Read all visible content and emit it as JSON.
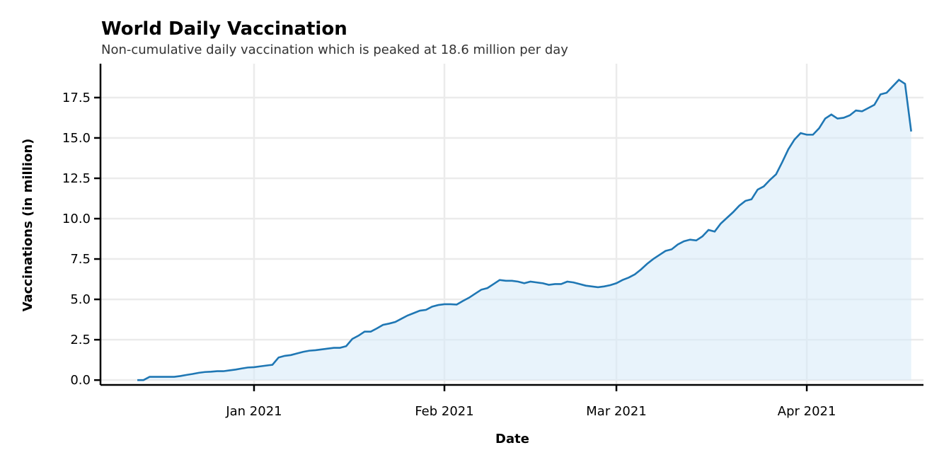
{
  "chart_data": {
    "type": "area",
    "title": "World Daily Vaccination",
    "subtitle": "Non-cumulative daily vaccination which is peaked at 18.6 million per day",
    "xlabel": "Date",
    "ylabel": "Vaccinations (in million)",
    "xlim": [
      "2020-12-07",
      "2021-04-20"
    ],
    "ylim": [
      -0.3,
      19.6
    ],
    "x_ticks": [
      {
        "date": "2021-01-01",
        "label": "Jan 2021"
      },
      {
        "date": "2021-02-01",
        "label": "Feb 2021"
      },
      {
        "date": "2021-03-01",
        "label": "Mar 2021"
      },
      {
        "date": "2021-04-01",
        "label": "Apr 2021"
      }
    ],
    "y_ticks": [
      0,
      2.5,
      5,
      7.5,
      10,
      12.5,
      15,
      17.5
    ],
    "y_tick_labels": [
      "0.0",
      "2.5",
      "5.0",
      "7.5",
      "10.0",
      "12.5",
      "15.0",
      "17.5"
    ],
    "grid": true,
    "line_color": "#1f77b4",
    "fill_color": "#d6eaf8",
    "start_date": "2020-12-13",
    "values": [
      0.0,
      0.0,
      0.2,
      0.2,
      0.2,
      0.2,
      0.2,
      0.25,
      0.32,
      0.38,
      0.45,
      0.5,
      0.52,
      0.55,
      0.55,
      0.6,
      0.65,
      0.72,
      0.78,
      0.8,
      0.85,
      0.9,
      0.95,
      1.4,
      1.5,
      1.55,
      1.65,
      1.75,
      1.82,
      1.85,
      1.9,
      1.95,
      2.0,
      2.0,
      2.1,
      2.55,
      2.75,
      3.0,
      3.0,
      3.2,
      3.42,
      3.5,
      3.6,
      3.8,
      4.0,
      4.15,
      4.3,
      4.35,
      4.55,
      4.65,
      4.7,
      4.7,
      4.68,
      4.9,
      5.1,
      5.35,
      5.6,
      5.7,
      5.95,
      6.2,
      6.15,
      6.15,
      6.1,
      6.0,
      6.1,
      6.05,
      6.0,
      5.9,
      5.95,
      5.95,
      6.1,
      6.05,
      5.95,
      5.85,
      5.8,
      5.75,
      5.8,
      5.88,
      6.0,
      6.2,
      6.35,
      6.55,
      6.85,
      7.2,
      7.5,
      7.75,
      8.0,
      8.1,
      8.4,
      8.6,
      8.7,
      8.65,
      8.9,
      9.3,
      9.2,
      9.7,
      10.05,
      10.4,
      10.8,
      11.1,
      11.2,
      11.8,
      12.0,
      12.4,
      12.75,
      13.5,
      14.3,
      14.9,
      15.3,
      15.2,
      15.2,
      15.6,
      16.2,
      16.45,
      16.2,
      16.25,
      16.4,
      16.7,
      16.65,
      16.85,
      17.05,
      17.7,
      17.8,
      18.2,
      18.6,
      18.35,
      15.4
    ]
  }
}
